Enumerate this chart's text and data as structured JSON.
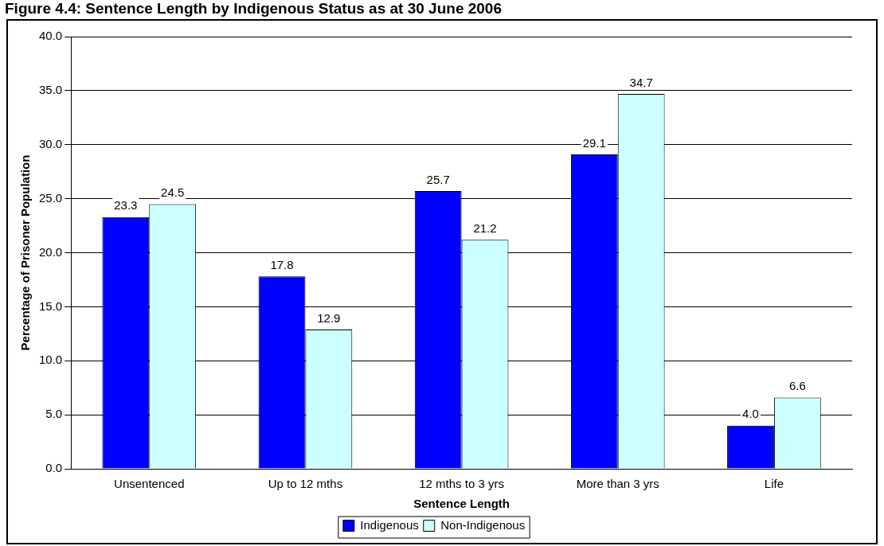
{
  "chart_data": {
    "type": "bar",
    "title": "Figure 4.4: Sentence Length by Indigenous Status as at 30 June 2006",
    "xlabel": "Sentence Length",
    "ylabel": "Percentage of Prisoner Population",
    "categories": [
      "Unsentenced",
      "Up to 12 mths",
      "12 mths to 3 yrs",
      "More than 3 yrs",
      "Life"
    ],
    "series": [
      {
        "name": "Indigenous",
        "color": "#0000ff",
        "values": [
          23.3,
          17.8,
          25.7,
          29.1,
          4.0
        ],
        "value_labels": [
          "23.3",
          "17.8",
          "25.7",
          "29.1",
          "4.0"
        ]
      },
      {
        "name": "Non-Indigenous",
        "color": "#ccffff",
        "values": [
          24.5,
          12.9,
          21.2,
          34.7,
          6.6
        ],
        "value_labels": [
          "24.5",
          "12.9",
          "21.2",
          "34.7",
          "6.6"
        ]
      }
    ],
    "ylim": [
      0,
      40
    ],
    "yticks": [
      {
        "value": 0,
        "label": "0.0"
      },
      {
        "value": 5,
        "label": "5.0"
      },
      {
        "value": 10,
        "label": "10.0"
      },
      {
        "value": 15,
        "label": "15.0"
      },
      {
        "value": 20,
        "label": "20.0"
      },
      {
        "value": 25,
        "label": "25.0"
      },
      {
        "value": 30,
        "label": "30.0"
      },
      {
        "value": 35,
        "label": "35.0"
      },
      {
        "value": 40,
        "label": "40.0"
      }
    ],
    "grid": "y",
    "legend": "bottom"
  }
}
